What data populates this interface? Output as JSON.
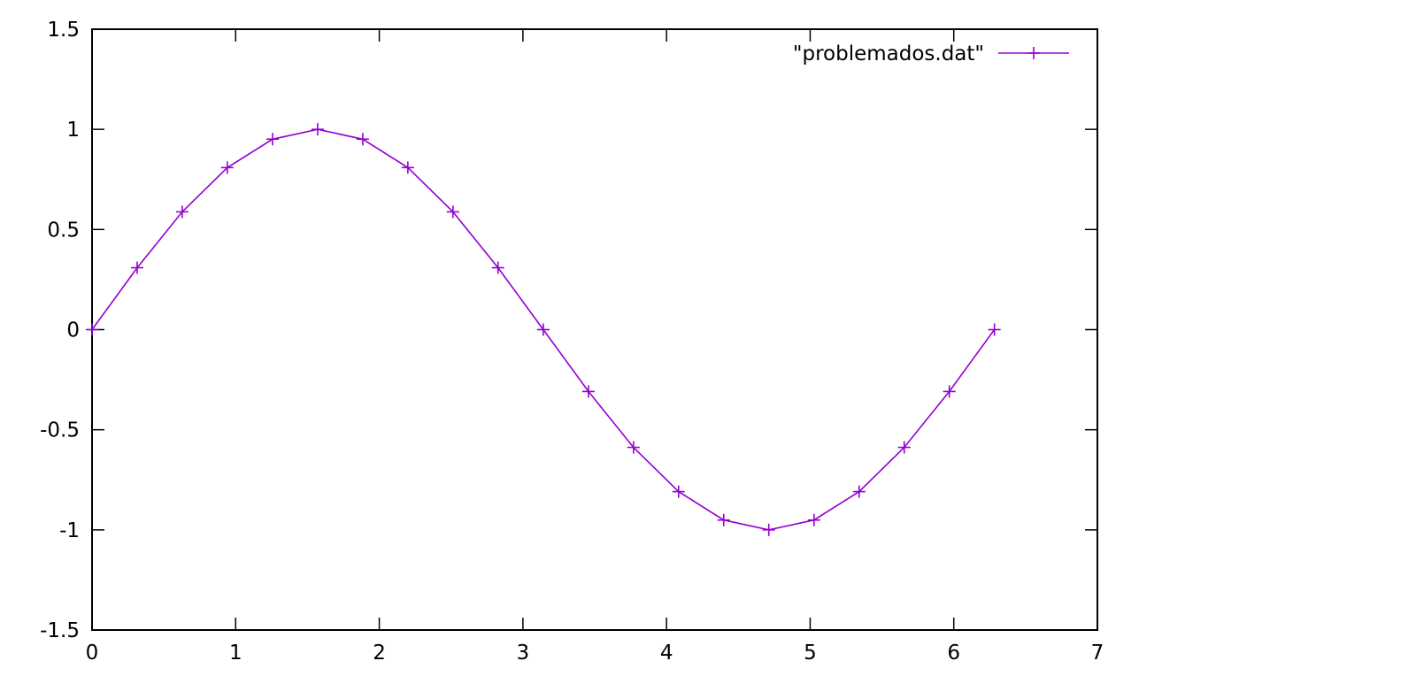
{
  "chart_data": {
    "type": "line",
    "title": "",
    "xlabel": "",
    "ylabel": "",
    "xlim": [
      0,
      7
    ],
    "ylim": [
      -1.5,
      1.5
    ],
    "x_ticks": [
      0,
      1,
      2,
      3,
      4,
      5,
      6,
      7
    ],
    "y_ticks": [
      -1.5,
      -1,
      -0.5,
      0,
      0.5,
      1,
      1.5
    ],
    "x_tick_labels": [
      "0",
      "1",
      "2",
      "3",
      "4",
      "5",
      "6",
      "7"
    ],
    "y_tick_labels": [
      "-1.5",
      "-1",
      "-0.5",
      "0",
      "0.5",
      "1",
      "1.5"
    ],
    "grid": false,
    "legend_position": "top-right",
    "colors": {
      "series": "#9400d3",
      "axes": "#000000"
    },
    "series": [
      {
        "name": "\"problemados.dat\"",
        "marker": "plus",
        "x": [
          0,
          0.314,
          0.628,
          0.942,
          1.257,
          1.571,
          1.885,
          2.199,
          2.513,
          2.827,
          3.142,
          3.456,
          3.77,
          4.084,
          4.398,
          4.712,
          5.027,
          5.341,
          5.655,
          5.969,
          6.283
        ],
        "y": [
          0,
          0.309,
          0.588,
          0.809,
          0.951,
          1,
          0.951,
          0.809,
          0.588,
          0.309,
          0,
          -0.309,
          -0.588,
          -0.809,
          -0.951,
          -1,
          -0.951,
          -0.809,
          -0.588,
          -0.309,
          0
        ]
      }
    ]
  }
}
